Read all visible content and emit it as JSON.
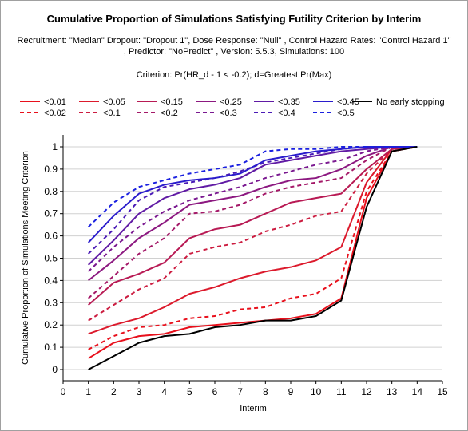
{
  "title": "Cumulative Proportion of Simulations Satisfying Futility Criterion by Interim",
  "subtitle": "Recruitment: \"Median\" Dropout: \"Dropout 1\", Dose Response: \"Null\" , Control Hazard Rates: \"Control Hazard 1\" , Predictor: \"NoPredict\" , Version: 5.5.3, Simulations: 100",
  "criterion": "Criterion: Pr(HR_d - 1 < -0.2); d=Greatest Pr(Max)",
  "chart_data": {
    "type": "line",
    "xlabel": "Interim",
    "ylabel": "Cumulative Proportion of Simulations Meeting Criterion",
    "xlim": [
      0,
      15
    ],
    "ylim": [
      0,
      1
    ],
    "xticks": [
      0,
      1,
      2,
      3,
      4,
      5,
      6,
      7,
      8,
      9,
      10,
      11,
      12,
      13,
      14,
      15
    ],
    "yticks": [
      0,
      0.1,
      0.2,
      0.3,
      0.4,
      0.5,
      0.6,
      0.7,
      0.8,
      0.9,
      1
    ],
    "grid": "horizontal",
    "legend_placement": "top",
    "x": [
      1,
      2,
      3,
      4,
      5,
      6,
      7,
      8,
      9,
      10,
      11,
      12,
      13,
      14
    ],
    "series": [
      {
        "name": "<0.01",
        "color": "#e8101c",
        "dash": false,
        "values": [
          0.05,
          0.12,
          0.15,
          0.16,
          0.19,
          0.2,
          0.21,
          0.22,
          0.23,
          0.25,
          0.32,
          0.77,
          0.98,
          1.0
        ]
      },
      {
        "name": "<0.02",
        "color": "#e8101c",
        "dash": true,
        "values": [
          0.09,
          0.15,
          0.19,
          0.2,
          0.23,
          0.24,
          0.27,
          0.28,
          0.32,
          0.34,
          0.41,
          0.8,
          0.98,
          1.0
        ]
      },
      {
        "name": "<0.05",
        "color": "#dc1a2c",
        "dash": false,
        "values": [
          0.16,
          0.2,
          0.23,
          0.28,
          0.34,
          0.37,
          0.41,
          0.44,
          0.46,
          0.49,
          0.55,
          0.84,
          0.99,
          1.0
        ]
      },
      {
        "name": "<0.1",
        "color": "#cc1c40",
        "dash": true,
        "values": [
          0.22,
          0.29,
          0.36,
          0.41,
          0.52,
          0.55,
          0.57,
          0.62,
          0.65,
          0.69,
          0.71,
          0.88,
          0.99,
          1.0
        ]
      },
      {
        "name": "<0.15",
        "color": "#b81a54",
        "dash": false,
        "values": [
          0.29,
          0.39,
          0.43,
          0.48,
          0.59,
          0.63,
          0.65,
          0.7,
          0.75,
          0.77,
          0.79,
          0.9,
          0.99,
          1.0
        ]
      },
      {
        "name": "<0.2",
        "color": "#a41868",
        "dash": true,
        "values": [
          0.32,
          0.42,
          0.52,
          0.59,
          0.7,
          0.71,
          0.74,
          0.79,
          0.82,
          0.84,
          0.86,
          0.94,
          1.0,
          1.0
        ]
      },
      {
        "name": "<0.25",
        "color": "#8c1880",
        "dash": false,
        "values": [
          0.4,
          0.49,
          0.59,
          0.66,
          0.74,
          0.76,
          0.78,
          0.82,
          0.85,
          0.86,
          0.9,
          0.96,
          1.0,
          1.0
        ]
      },
      {
        "name": "<0.3",
        "color": "#7a1890",
        "dash": true,
        "values": [
          0.44,
          0.55,
          0.64,
          0.71,
          0.76,
          0.79,
          0.82,
          0.86,
          0.89,
          0.92,
          0.94,
          0.98,
          1.0,
          1.0
        ]
      },
      {
        "name": "<0.35",
        "color": "#601aa4",
        "dash": false,
        "values": [
          0.47,
          0.58,
          0.7,
          0.77,
          0.81,
          0.83,
          0.86,
          0.92,
          0.94,
          0.96,
          0.98,
          0.99,
          1.0,
          1.0
        ]
      },
      {
        "name": "<0.4",
        "color": "#4a1ab6",
        "dash": true,
        "values": [
          0.52,
          0.63,
          0.76,
          0.82,
          0.84,
          0.86,
          0.89,
          0.93,
          0.95,
          0.97,
          0.99,
          1.0,
          1.0,
          1.0
        ]
      },
      {
        "name": "<0.45",
        "color": "#2a1ccc",
        "dash": false,
        "values": [
          0.57,
          0.69,
          0.79,
          0.83,
          0.85,
          0.86,
          0.88,
          0.94,
          0.96,
          0.98,
          0.99,
          1.0,
          1.0,
          1.0
        ]
      },
      {
        "name": "<0.5",
        "color": "#1a20e0",
        "dash": true,
        "values": [
          0.64,
          0.75,
          0.82,
          0.85,
          0.88,
          0.9,
          0.92,
          0.98,
          0.99,
          0.99,
          1.0,
          1.0,
          1.0,
          1.0
        ]
      },
      {
        "name": "No early stopping",
        "color": "#000000",
        "dash": false,
        "values": [
          0.0,
          0.06,
          0.12,
          0.15,
          0.16,
          0.19,
          0.2,
          0.22,
          0.22,
          0.24,
          0.31,
          0.73,
          0.98,
          1.0
        ]
      }
    ],
    "legend_order": [
      "<0.01",
      "<0.05",
      "<0.15",
      "<0.25",
      "<0.35",
      "<0.45",
      "No early stopping",
      "<0.02",
      "<0.1",
      "<0.2",
      "<0.3",
      "<0.4",
      "<0.5"
    ]
  }
}
